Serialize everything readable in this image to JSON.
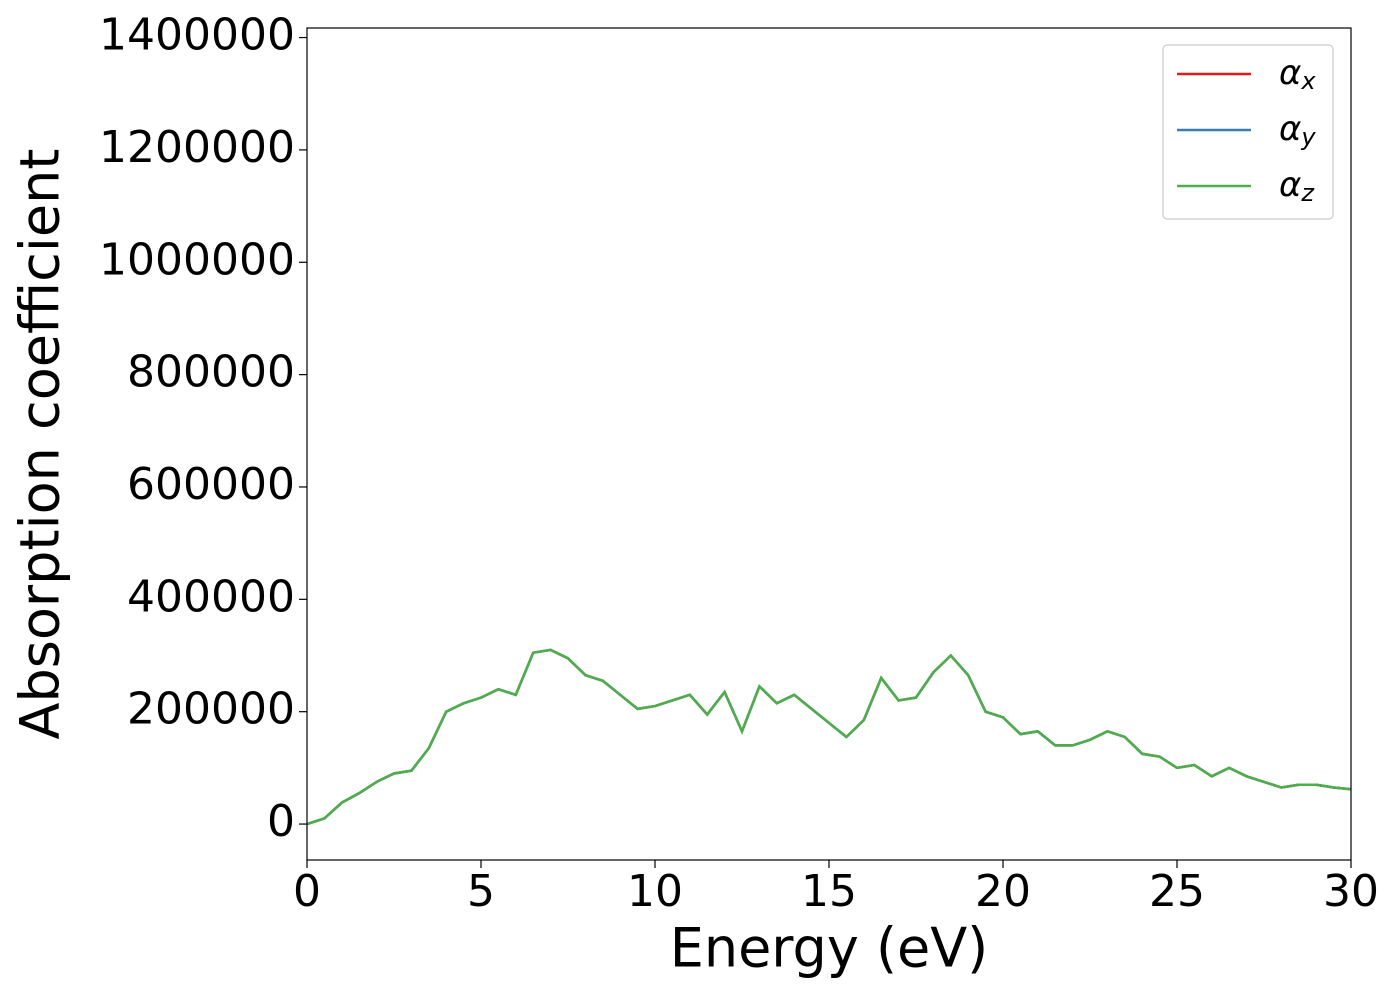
{
  "chart_data": {
    "type": "line",
    "xlabel": "Energy (eV)",
    "ylabel": "Absorption coefficient",
    "x": [
      0,
      0.5,
      1,
      1.5,
      2,
      2.5,
      3,
      3.5,
      4,
      4.5,
      5,
      5.5,
      6,
      6.5,
      7,
      7.5,
      8,
      8.5,
      9,
      9.5,
      10,
      10.5,
      11,
      11.5,
      12,
      12.5,
      13,
      13.5,
      14,
      14.5,
      15,
      15.5,
      16,
      16.5,
      17,
      17.5,
      18,
      18.5,
      19,
      19.5,
      20,
      20.5,
      21,
      21.5,
      22,
      22.5,
      23,
      23.5,
      24,
      24.5,
      25,
      25.5,
      26,
      26.5,
      27,
      27.5,
      28,
      28.5,
      29,
      29.5,
      30
    ],
    "series": [
      {
        "name": "αx",
        "color": "#e41a1c",
        "values": [
          0,
          10000,
          38000,
          55000,
          75000,
          90000,
          95000,
          135000,
          200000,
          215000,
          225000,
          240000,
          230000,
          305000,
          310000,
          295000,
          265000,
          255000,
          230000,
          205000,
          210000,
          220000,
          230000,
          195000,
          235000,
          165000,
          245000,
          215000,
          230000,
          205000,
          180000,
          155000,
          185000,
          260000,
          220000,
          225000,
          270000,
          300000,
          265000,
          200000,
          190000,
          160000,
          165000,
          140000,
          140000,
          150000,
          165000,
          155000,
          125000,
          120000,
          100000,
          105000,
          85000,
          100000,
          85000,
          75000,
          65000,
          70000,
          70000,
          65000,
          62000
        ]
      },
      {
        "name": "αy",
        "color": "#377eb8",
        "values": [
          0,
          10000,
          38000,
          55000,
          75000,
          90000,
          95000,
          135000,
          200000,
          215000,
          225000,
          240000,
          230000,
          305000,
          310000,
          295000,
          265000,
          255000,
          230000,
          205000,
          210000,
          220000,
          230000,
          195000,
          235000,
          165000,
          245000,
          215000,
          230000,
          205000,
          180000,
          155000,
          185000,
          260000,
          220000,
          225000,
          270000,
          300000,
          265000,
          200000,
          190000,
          160000,
          165000,
          140000,
          140000,
          150000,
          165000,
          155000,
          125000,
          120000,
          100000,
          105000,
          85000,
          100000,
          85000,
          75000,
          65000,
          70000,
          70000,
          65000,
          62000
        ]
      },
      {
        "name": "αz",
        "color": "#4daf4a",
        "values": [
          0,
          10000,
          38000,
          55000,
          75000,
          90000,
          95000,
          135000,
          200000,
          215000,
          225000,
          240000,
          230000,
          305000,
          310000,
          295000,
          265000,
          255000,
          230000,
          205000,
          210000,
          220000,
          230000,
          195000,
          235000,
          165000,
          245000,
          215000,
          230000,
          205000,
          180000,
          155000,
          185000,
          260000,
          220000,
          225000,
          270000,
          300000,
          265000,
          200000,
          190000,
          160000,
          165000,
          140000,
          140000,
          150000,
          165000,
          155000,
          125000,
          120000,
          100000,
          105000,
          85000,
          100000,
          85000,
          75000,
          65000,
          70000,
          70000,
          65000,
          62000
        ]
      }
    ],
    "xlim": [
      0,
      30
    ],
    "xticks": [
      0,
      5,
      10,
      15,
      20,
      25,
      30
    ],
    "ylim": [
      -64000,
      1417000
    ],
    "yticks": [
      0,
      200000,
      400000,
      600000,
      800000,
      1000000,
      1200000,
      1400000
    ],
    "legend": "upper right"
  }
}
